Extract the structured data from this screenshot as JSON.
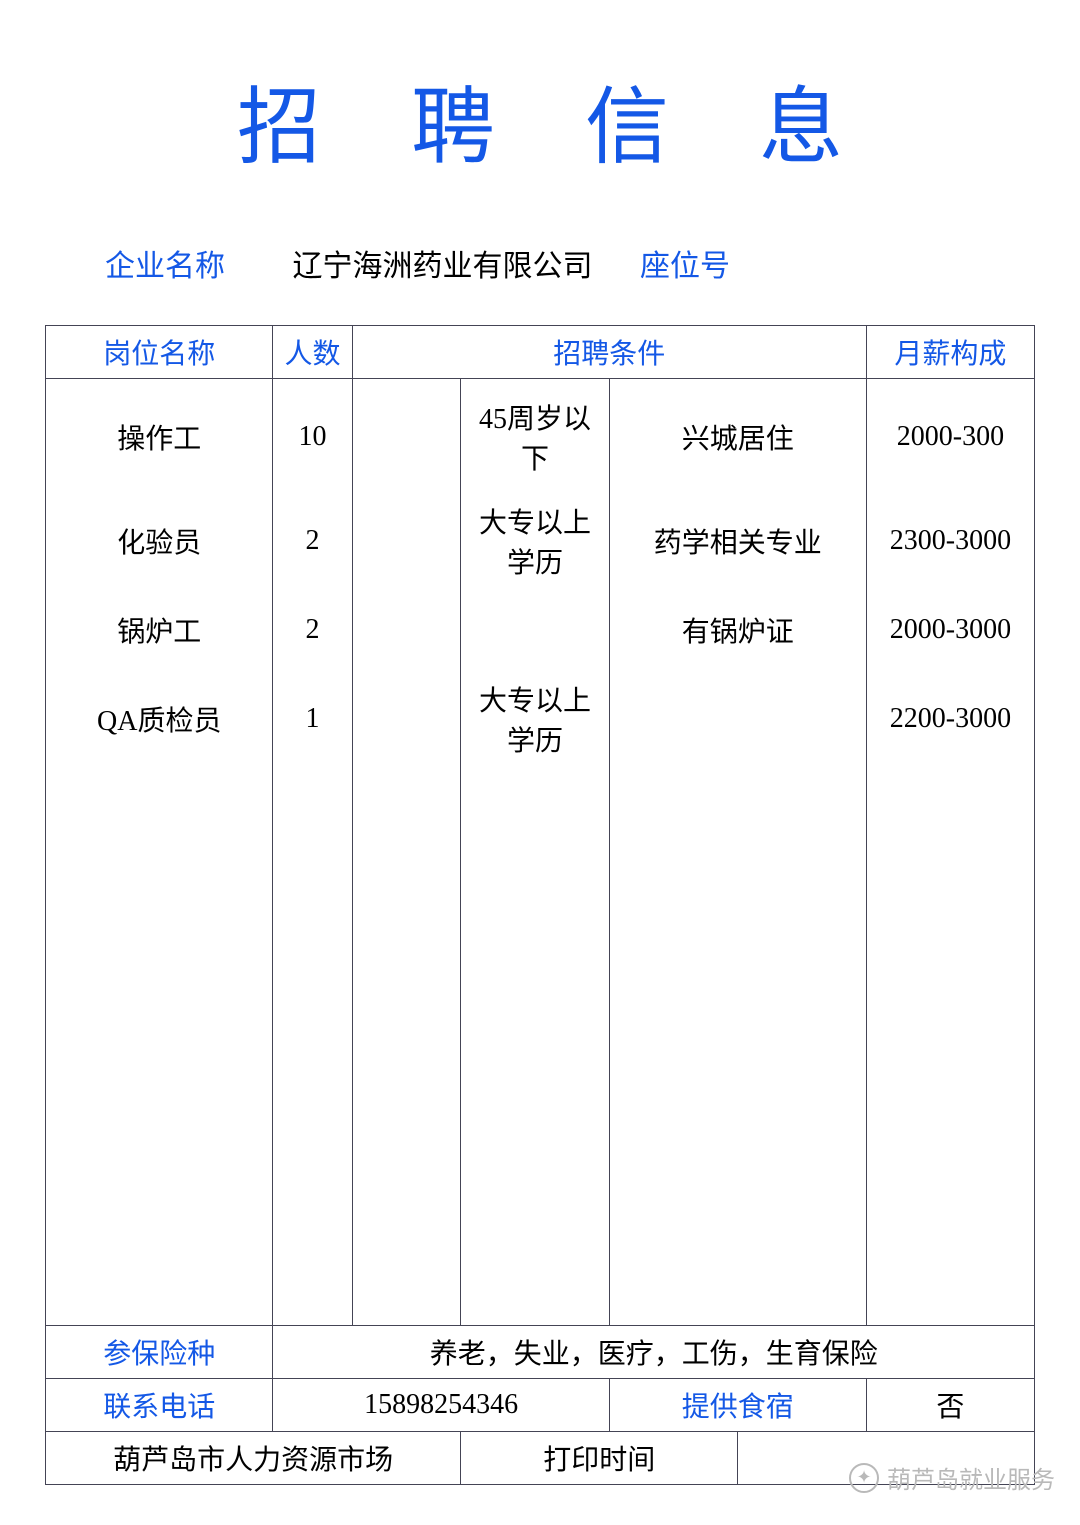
{
  "colors": {
    "accent": "#1458e6",
    "text": "#000000",
    "border": "#3a3a4a",
    "background": "#ffffff",
    "watermark": "#b9b9b9"
  },
  "typography": {
    "family": "SimSun",
    "title_fontsize": 84,
    "body_fontsize": 28,
    "info_fontsize": 30,
    "title_letter_spacing": 90
  },
  "header": {
    "title": "招聘信息",
    "company_label": "企业名称",
    "company_name": "辽宁海洲药业有限公司",
    "seat_label": "座位号",
    "seat_value": ""
  },
  "table": {
    "columns": {
      "position": "岗位名称",
      "count": "人数",
      "requirements": "招聘条件",
      "salary": "月薪构成"
    },
    "column_widths_pct": [
      23,
      8,
      11,
      15,
      13,
      13,
      17
    ],
    "rows": [
      {
        "position": "操作工",
        "count": "10",
        "cond1": "",
        "cond2": "45周岁以下",
        "cond3": "兴城居住",
        "salary": "2000-300"
      },
      {
        "position": "化验员",
        "count": "2",
        "cond1": "",
        "cond2": "大专以上学历",
        "cond3": "药学相关专业",
        "salary": "2300-3000"
      },
      {
        "position": "锅炉工",
        "count": "2",
        "cond1": "",
        "cond2": "",
        "cond3": "有锅炉证",
        "salary": "2000-3000"
      },
      {
        "position": "QA质检员",
        "count": "1",
        "cond1": "",
        "cond2": "大专以上学历",
        "cond3": "",
        "salary": "2200-3000"
      }
    ]
  },
  "footer": {
    "insurance_label": "参保险种",
    "insurance_value": "养老，失业，医疗，工伤，生育保险",
    "phone_label": "联系电话",
    "phone_value": "15898254346",
    "lodging_label": "提供食宿",
    "lodging_value": "否",
    "source_label": "葫芦岛市人力资源市场",
    "print_label": "打印时间",
    "print_value": ""
  },
  "watermark": {
    "text": "葫芦岛就业服务"
  }
}
